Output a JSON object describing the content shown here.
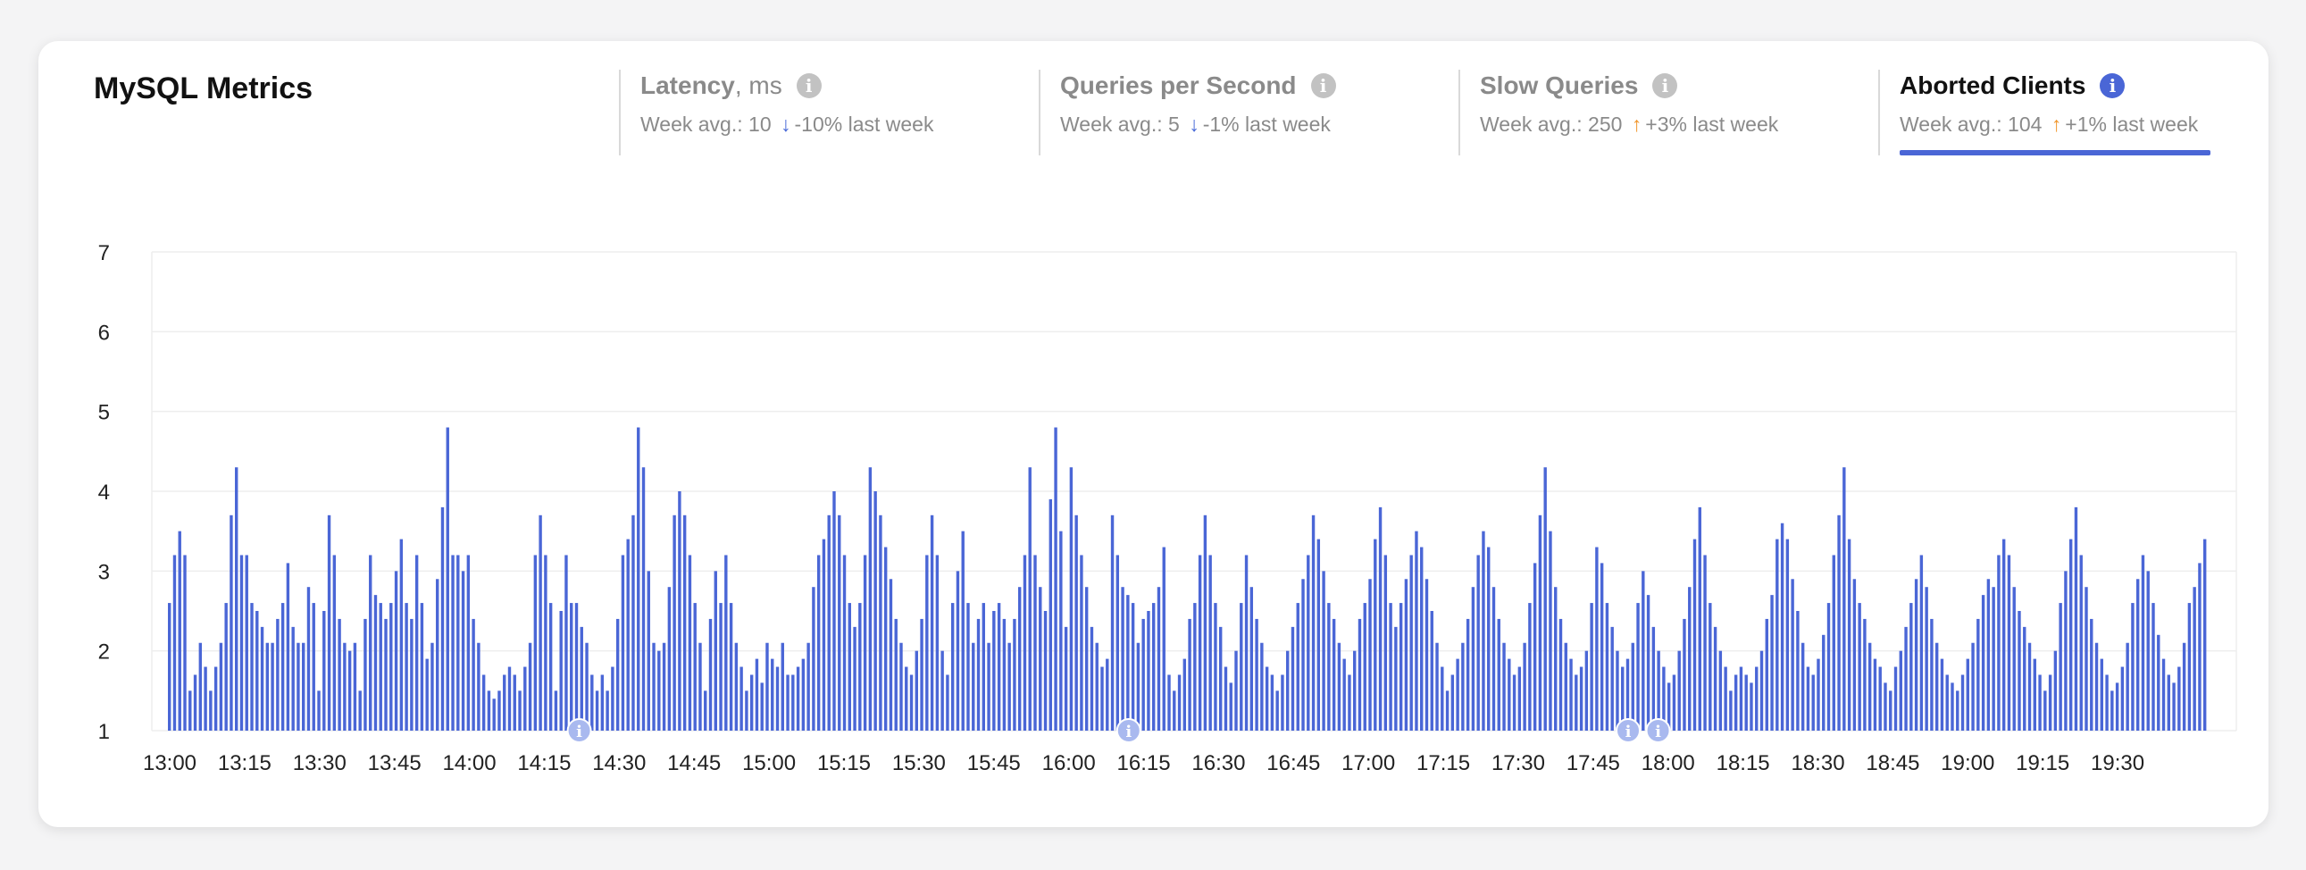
{
  "header": {
    "title": "MySQL Metrics"
  },
  "tabs": [
    {
      "name": "Latency",
      "unit": ", ms",
      "avg_label": "Week avg.:",
      "avg": "10",
      "direction": "down",
      "arrow": "↓",
      "change": "-10% last week",
      "active": false
    },
    {
      "name": "Queries per Second",
      "unit": "",
      "avg_label": "Week avg.:",
      "avg": "5",
      "direction": "down",
      "arrow": "↓",
      "change": "-1% last week",
      "active": false
    },
    {
      "name": "Slow Queries",
      "unit": "",
      "avg_label": "Week avg.:",
      "avg": "250",
      "direction": "up",
      "arrow": "↑",
      "change": "+3% last week",
      "active": false
    },
    {
      "name": "Aborted Clients",
      "unit": "",
      "avg_label": "Week avg.:",
      "avg": "104",
      "direction": "up",
      "arrow": "↑",
      "change": "+1% last week",
      "active": true
    }
  ],
  "colors": {
    "bar": "#4a66d6",
    "marker": "#a9b9ef",
    "accent": "#4a66d6",
    "arrow_up": "#f0962c",
    "arrow_down": "#4a6bd8"
  },
  "chart_data": {
    "type": "bar",
    "series_name": "Aborted Clients",
    "ylim": [
      1,
      7
    ],
    "yticks": [
      1,
      2,
      3,
      4,
      5,
      6,
      7
    ],
    "xlim_minutes": [
      0,
      400
    ],
    "xticks": [
      "13:00",
      "13:15",
      "13:30",
      "13:45",
      "14:00",
      "14:15",
      "14:30",
      "14:45",
      "15:00",
      "15:15",
      "15:30",
      "15:45",
      "16:00",
      "16:15",
      "16:30",
      "16:45",
      "17:00",
      "17:15",
      "17:30",
      "17:45",
      "18:00",
      "18:15",
      "18:30",
      "18:45",
      "19:00",
      "19:15",
      "19:30"
    ],
    "grid": true,
    "markers": [
      {
        "time": "14:22",
        "label": "i"
      },
      {
        "time": "16:12",
        "label": "i"
      },
      {
        "time": "17:52",
        "label": "i"
      },
      {
        "time": "17:58",
        "label": "i"
      }
    ],
    "values": [
      2.6,
      3.2,
      3.5,
      3.2,
      1.5,
      1.7,
      2.1,
      1.8,
      1.5,
      1.8,
      2.1,
      2.6,
      3.7,
      4.3,
      3.2,
      3.2,
      2.6,
      2.5,
      2.3,
      2.1,
      2.1,
      2.4,
      2.6,
      3.1,
      2.3,
      2.1,
      2.1,
      2.8,
      2.6,
      1.5,
      2.5,
      3.7,
      3.2,
      2.4,
      2.1,
      2.0,
      2.1,
      1.5,
      2.4,
      3.2,
      2.7,
      2.6,
      2.4,
      2.6,
      3.0,
      3.4,
      2.6,
      2.4,
      3.2,
      2.6,
      1.9,
      2.1,
      2.9,
      3.8,
      4.8,
      3.2,
      3.2,
      3.0,
      3.2,
      2.4,
      2.1,
      1.7,
      1.5,
      1.4,
      1.5,
      1.7,
      1.8,
      1.7,
      1.5,
      1.8,
      2.1,
      3.2,
      3.7,
      3.2,
      2.6,
      1.5,
      2.5,
      3.2,
      2.6,
      2.6,
      2.3,
      2.1,
      1.7,
      1.5,
      1.7,
      1.5,
      1.8,
      2.4,
      3.2,
      3.4,
      3.7,
      4.8,
      4.3,
      3.0,
      2.1,
      2.0,
      2.1,
      2.8,
      3.7,
      4.0,
      3.7,
      3.2,
      2.6,
      2.1,
      1.5,
      2.4,
      3.0,
      2.6,
      3.2,
      2.6,
      2.1,
      1.8,
      1.5,
      1.7,
      1.9,
      1.6,
      2.1,
      1.9,
      1.8,
      2.1,
      1.7,
      1.7,
      1.8,
      1.9,
      2.1,
      2.8,
      3.2,
      3.4,
      3.7,
      4.0,
      3.7,
      3.2,
      2.6,
      2.3,
      2.6,
      3.2,
      4.3,
      4.0,
      3.7,
      3.3,
      2.9,
      2.4,
      2.1,
      1.8,
      1.7,
      2.0,
      2.4,
      3.2,
      3.7,
      3.2,
      2.0,
      1.7,
      2.6,
      3.0,
      3.5,
      2.6,
      2.1,
      2.4,
      2.6,
      2.1,
      2.5,
      2.6,
      2.4,
      2.1,
      2.4,
      2.8,
      3.2,
      4.3,
      3.2,
      2.8,
      2.5,
      3.9,
      4.8,
      3.5,
      2.3,
      4.3,
      3.7,
      3.2,
      2.8,
      2.3,
      2.1,
      1.8,
      1.9,
      3.7,
      3.2,
      2.8,
      2.7,
      2.6,
      2.1,
      2.4,
      2.5,
      2.6,
      2.8,
      3.3,
      1.7,
      1.5,
      1.7,
      1.9,
      2.4,
      2.6,
      3.2,
      3.7,
      3.2,
      2.6,
      2.3,
      1.8,
      1.6,
      2.0,
      2.6,
      3.2,
      2.8,
      2.4,
      2.1,
      1.8,
      1.7,
      1.5,
      1.7,
      2.0,
      2.3,
      2.6,
      2.9,
      3.2,
      3.7,
      3.4,
      3.0,
      2.6,
      2.4,
      2.1,
      1.9,
      1.7,
      2.0,
      2.4,
      2.6,
      2.9,
      3.4,
      3.8,
      3.2,
      2.6,
      2.3,
      2.6,
      2.9,
      3.2,
      3.5,
      3.3,
      2.9,
      2.5,
      2.1,
      1.8,
      1.5,
      1.7,
      1.9,
      2.1,
      2.4,
      2.8,
      3.2,
      3.5,
      3.3,
      2.8,
      2.4,
      2.1,
      1.9,
      1.7,
      1.8,
      2.1,
      2.6,
      3.1,
      3.7,
      4.3,
      3.5,
      2.8,
      2.4,
      2.1,
      1.9,
      1.7,
      1.8,
      2.0,
      2.6,
      3.3,
      3.1,
      2.6,
      2.3,
      2.0,
      1.8,
      1.9,
      2.1,
      2.6,
      3.0,
      2.7,
      2.3,
      2.0,
      1.8,
      1.6,
      1.7,
      2.0,
      2.4,
      2.8,
      3.4,
      3.8,
      3.2,
      2.6,
      2.3,
      2.0,
      1.8,
      1.5,
      1.7,
      1.8,
      1.7,
      1.6,
      1.8,
      2.0,
      2.4,
      2.7,
      3.4,
      3.6,
      3.4,
      2.9,
      2.5,
      2.1,
      1.8,
      1.7,
      1.9,
      2.2,
      2.6,
      3.2,
      3.7,
      4.3,
      3.4,
      2.9,
      2.6,
      2.4,
      2.1,
      1.9,
      1.8,
      1.6,
      1.5,
      1.8,
      2.0,
      2.3,
      2.6,
      2.9,
      3.2,
      2.8,
      2.4,
      2.1,
      1.9,
      1.7,
      1.6,
      1.5,
      1.7,
      1.9,
      2.1,
      2.4,
      2.7,
      2.9,
      2.8,
      3.2,
      3.4,
      3.2,
      2.8,
      2.5,
      2.3,
      2.1,
      1.9,
      1.7,
      1.5,
      1.7,
      2.0,
      2.6,
      3.0,
      3.4,
      3.8,
      3.2,
      2.8,
      2.4,
      2.1,
      1.9,
      1.7,
      1.5,
      1.6,
      1.8,
      2.1,
      2.6,
      2.9,
      3.2,
      3.0,
      2.6,
      2.2,
      1.9,
      1.7,
      1.6,
      1.8,
      2.1,
      2.6,
      2.8,
      3.1,
      3.4
    ]
  }
}
